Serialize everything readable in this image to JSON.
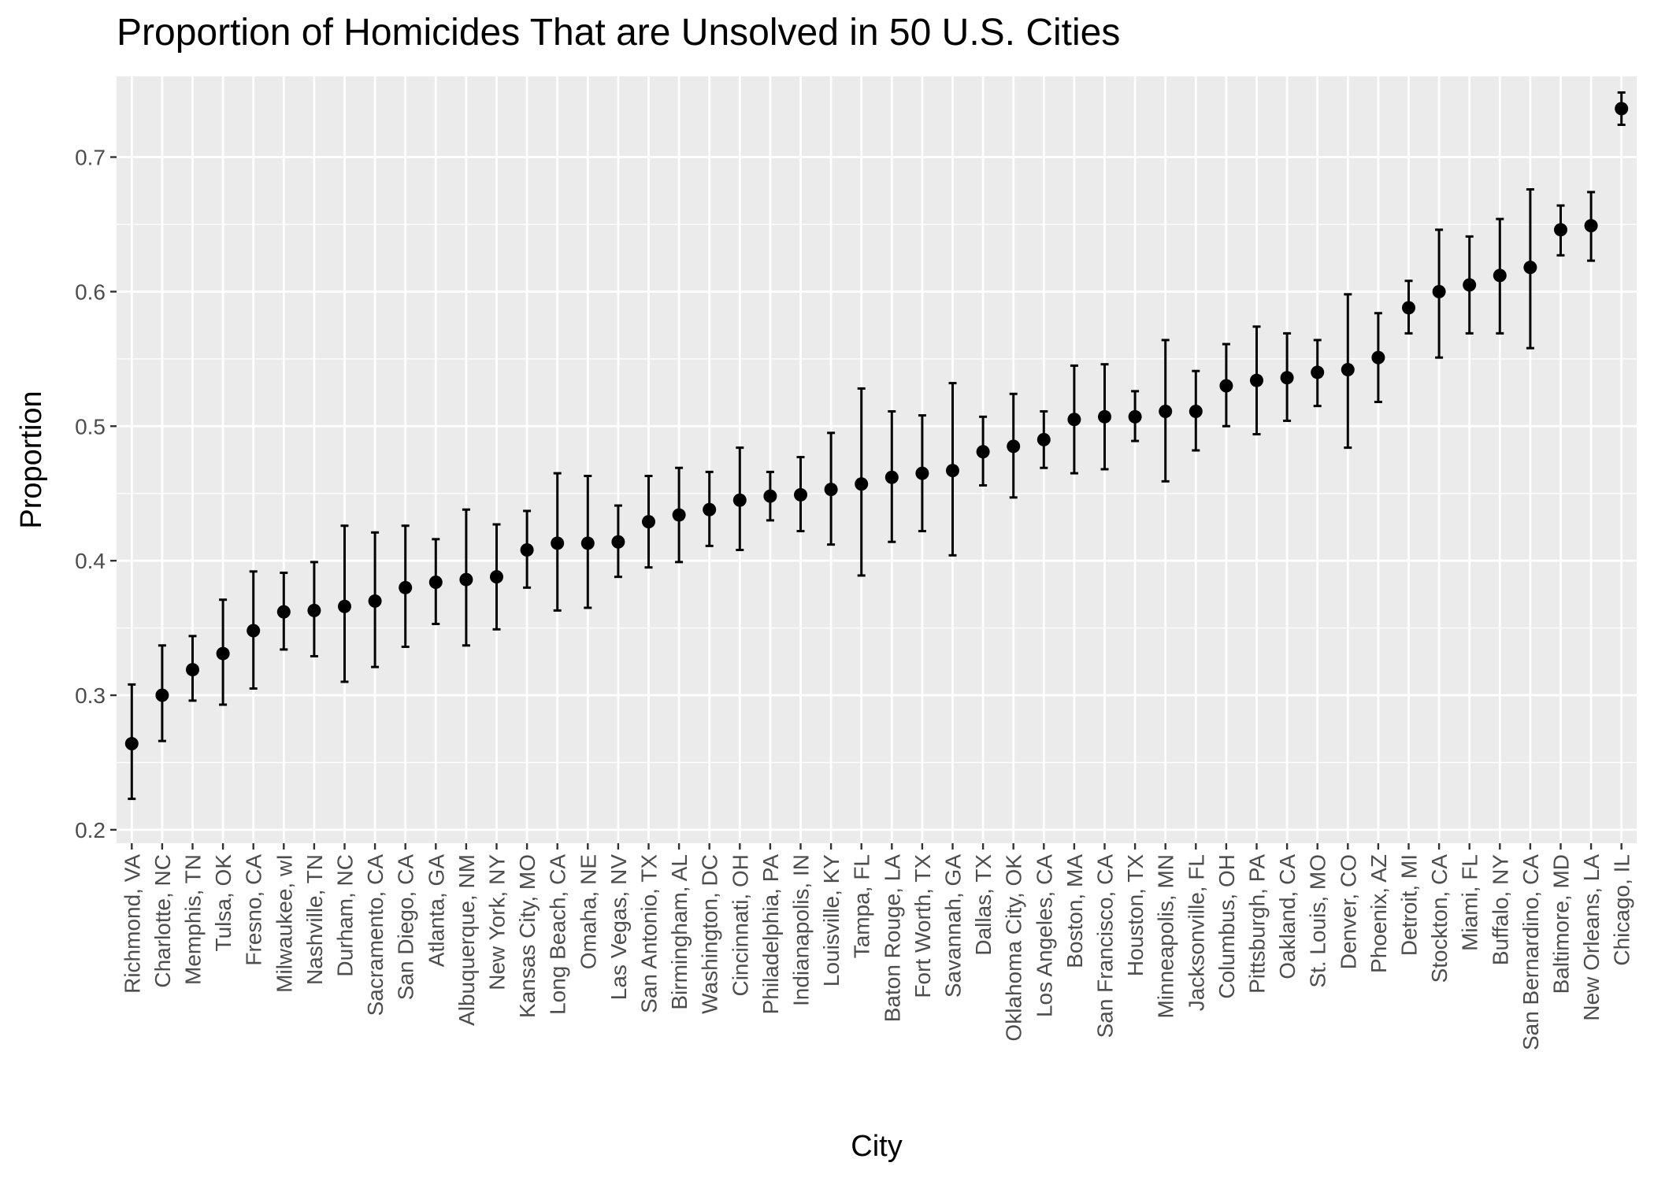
{
  "chart_data": {
    "type": "scatter",
    "title": "Proportion of Homicides That are Unsolved in 50 U.S. Cities",
    "xlabel": "City",
    "ylabel": "Proportion",
    "ylim": [
      0.19,
      0.76
    ],
    "yticks": [
      "0.2",
      "0.3",
      "0.4",
      "0.5",
      "0.6",
      "0.7"
    ],
    "grid": true,
    "legend": "none",
    "error_bars": true,
    "categories": [
      "Richmond, VA",
      "Charlotte, NC",
      "Memphis, TN",
      "Tulsa, OK",
      "Fresno, CA",
      "Milwaukee, wI",
      "Nashville, TN",
      "Durham, NC",
      "Sacramento, CA",
      "San Diego, CA",
      "Atlanta, GA",
      "Albuquerque, NM",
      "New York, NY",
      "Kansas City, MO",
      "Long Beach, CA",
      "Omaha, NE",
      "Las Vegas, NV",
      "San Antonio, TX",
      "Birmingham, AL",
      "Washington, DC",
      "Cincinnati, OH",
      "Philadelphia, PA",
      "Indianapolis, IN",
      "Louisville, KY",
      "Tampa, FL",
      "Baton Rouge, LA",
      "Fort Worth, TX",
      "Savannah, GA",
      "Dallas, TX",
      "Oklahoma City, OK",
      "Los Angeles, CA",
      "Boston, MA",
      "San Francisco, CA",
      "Houston, TX",
      "Minneapolis, MN",
      "Jacksonville, FL",
      "Columbus, OH",
      "Pittsburgh, PA",
      "Oakland, CA",
      "St. Louis, MO",
      "Denver, CO",
      "Phoenix, AZ",
      "Detroit, MI",
      "Stockton, CA",
      "Miami, FL",
      "Buffalo, NY",
      "San Bernardino, CA",
      "Baltimore, MD",
      "New Orleans, LA",
      "Chicago, IL"
    ],
    "values": [
      0.264,
      0.3,
      0.319,
      0.331,
      0.348,
      0.362,
      0.363,
      0.366,
      0.37,
      0.38,
      0.384,
      0.386,
      0.388,
      0.408,
      0.413,
      0.413,
      0.414,
      0.429,
      0.434,
      0.438,
      0.445,
      0.448,
      0.449,
      0.453,
      0.457,
      0.462,
      0.465,
      0.467,
      0.481,
      0.485,
      0.49,
      0.505,
      0.507,
      0.507,
      0.511,
      0.511,
      0.53,
      0.534,
      0.536,
      0.54,
      0.542,
      0.551,
      0.588,
      0.6,
      0.605,
      0.612,
      0.618,
      0.646,
      0.649,
      0.736
    ],
    "lower": [
      0.223,
      0.266,
      0.296,
      0.293,
      0.305,
      0.334,
      0.329,
      0.31,
      0.321,
      0.336,
      0.353,
      0.337,
      0.349,
      0.38,
      0.363,
      0.365,
      0.388,
      0.395,
      0.399,
      0.411,
      0.408,
      0.43,
      0.422,
      0.412,
      0.389,
      0.414,
      0.422,
      0.404,
      0.456,
      0.447,
      0.469,
      0.465,
      0.468,
      0.489,
      0.459,
      0.482,
      0.5,
      0.494,
      0.504,
      0.515,
      0.484,
      0.518,
      0.569,
      0.551,
      0.569,
      0.569,
      0.558,
      0.627,
      0.623,
      0.724
    ],
    "upper": [
      0.308,
      0.337,
      0.344,
      0.371,
      0.392,
      0.391,
      0.399,
      0.426,
      0.421,
      0.426,
      0.416,
      0.438,
      0.427,
      0.437,
      0.465,
      0.463,
      0.441,
      0.463,
      0.469,
      0.466,
      0.484,
      0.466,
      0.477,
      0.495,
      0.528,
      0.511,
      0.508,
      0.532,
      0.507,
      0.524,
      0.511,
      0.545,
      0.546,
      0.526,
      0.564,
      0.541,
      0.561,
      0.574,
      0.569,
      0.564,
      0.598,
      0.584,
      0.608,
      0.646,
      0.641,
      0.654,
      0.676,
      0.664,
      0.674,
      0.748
    ]
  }
}
